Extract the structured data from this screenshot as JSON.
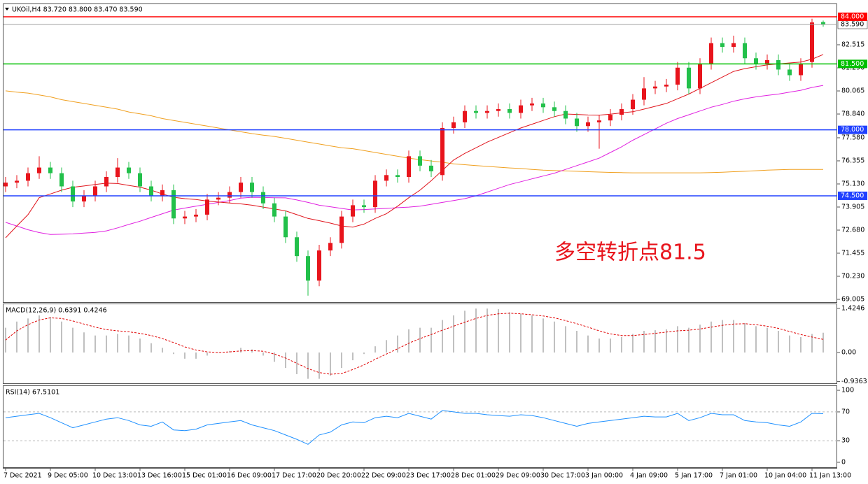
{
  "chart_data": [
    {
      "type": "candlestick",
      "title": "UKOil,H4  83.720 83.800 83.470 83.590",
      "categories": [
        "7 Dec 2021",
        null,
        null,
        null,
        "9 Dec 05:00",
        null,
        null,
        null,
        "10 Dec 13:00",
        null,
        null,
        null,
        "13 Dec 16:00",
        null,
        null,
        null,
        "15 Dec 01:00",
        null,
        null,
        null,
        "16 Dec 09:00",
        null,
        null,
        null,
        "17 Dec 17:00",
        null,
        null,
        null,
        "20 Dec 20:00",
        null,
        null,
        null,
        "22 Dec 09:00",
        null,
        null,
        null,
        "23 Dec 17:00",
        null,
        null,
        null,
        "28 Dec 01:00",
        null,
        null,
        null,
        "29 Dec 09:00",
        null,
        null,
        null,
        "30 Dec 17:00",
        null,
        null,
        null,
        "3 Jan 00:00",
        null,
        null,
        null,
        "4 Jan 09:00",
        null,
        null,
        null,
        "5 Jan 17:00",
        null,
        null,
        null,
        "7 Jan 01:00",
        null,
        null,
        null,
        "10 Jan 04:00",
        null,
        null,
        null,
        "11 Jan 13:00",
        null
      ],
      "open": [
        75.0,
        75.2,
        75.3,
        75.7,
        76.0,
        75.7,
        75.0,
        74.2,
        74.5,
        75.0,
        75.5,
        76.0,
        75.7,
        75.0,
        74.5,
        74.8,
        73.3,
        73.4,
        73.5,
        74.3,
        74.4,
        74.7,
        75.2,
        74.7,
        74.1,
        73.4,
        72.3,
        71.3,
        70.0,
        71.6,
        72.0,
        73.4,
        74.0,
        73.9,
        75.3,
        75.6,
        75.5,
        76.6,
        76.1,
        75.6,
        78.1,
        78.4,
        79.0,
        78.9,
        79.0,
        79.1,
        78.9,
        79.3,
        79.4,
        79.2,
        79.0,
        78.6,
        78.2,
        78.4,
        78.5,
        78.8,
        79.1,
        79.6,
        80.2,
        80.3,
        80.4,
        81.3,
        80.2,
        81.5,
        82.6,
        82.4,
        82.6,
        81.8,
        81.5,
        81.7,
        81.2,
        80.9,
        81.6,
        83.72
      ],
      "high": [
        75.5,
        75.6,
        76.0,
        76.6,
        76.3,
        76.0,
        75.3,
        74.8,
        75.3,
        75.8,
        76.5,
        76.3,
        76.0,
        75.3,
        75.1,
        75.1,
        73.7,
        73.8,
        74.6,
        74.7,
        75.0,
        75.5,
        75.5,
        75.0,
        74.4,
        73.7,
        72.6,
        71.6,
        71.9,
        72.3,
        73.7,
        74.3,
        74.3,
        75.6,
        75.9,
        75.9,
        76.9,
        76.9,
        76.4,
        78.4,
        78.7,
        79.3,
        79.3,
        79.3,
        79.4,
        79.4,
        79.6,
        79.7,
        79.7,
        79.5,
        79.3,
        78.9,
        78.7,
        78.8,
        79.1,
        79.4,
        79.9,
        80.8,
        80.6,
        80.7,
        81.6,
        81.6,
        81.8,
        82.9,
        82.9,
        83.0,
        82.9,
        82.1,
        82.0,
        82.0,
        81.5,
        81.8,
        83.9,
        83.8
      ],
      "low": [
        74.7,
        74.9,
        75.0,
        75.4,
        75.4,
        74.7,
        73.9,
        73.9,
        74.2,
        74.7,
        75.2,
        75.4,
        74.7,
        74.2,
        74.2,
        73.0,
        73.0,
        73.1,
        73.2,
        74.0,
        74.1,
        74.4,
        74.4,
        73.8,
        73.1,
        72.0,
        71.0,
        69.2,
        69.7,
        71.3,
        71.7,
        73.1,
        73.6,
        73.6,
        75.0,
        75.2,
        75.2,
        75.8,
        75.5,
        75.3,
        77.8,
        78.1,
        78.6,
        78.6,
        78.7,
        78.6,
        78.6,
        79.0,
        78.9,
        78.7,
        78.3,
        77.9,
        77.9,
        77.0,
        78.2,
        78.5,
        78.8,
        79.3,
        79.9,
        80.0,
        80.1,
        79.9,
        79.9,
        81.2,
        82.1,
        82.1,
        81.5,
        81.2,
        81.2,
        80.9,
        80.6,
        80.6,
        81.3,
        83.47
      ],
      "close": [
        75.2,
        75.3,
        75.7,
        76.0,
        75.7,
        75.0,
        74.2,
        74.5,
        75.0,
        75.5,
        76.0,
        75.7,
        75.0,
        74.5,
        74.8,
        73.3,
        73.4,
        73.5,
        74.3,
        74.4,
        74.7,
        75.2,
        74.7,
        74.1,
        73.4,
        72.3,
        71.3,
        70.0,
        71.6,
        72.0,
        73.4,
        74.0,
        73.9,
        75.3,
        75.6,
        75.5,
        76.6,
        76.1,
        75.8,
        78.1,
        78.4,
        79.0,
        78.9,
        79.0,
        79.1,
        78.9,
        79.3,
        79.4,
        79.2,
        79.0,
        78.6,
        78.2,
        78.4,
        78.5,
        78.8,
        79.1,
        79.6,
        80.2,
        80.3,
        80.4,
        81.3,
        80.2,
        81.5,
        82.6,
        82.4,
        82.6,
        81.8,
        81.5,
        81.7,
        81.2,
        80.9,
        81.5,
        83.7,
        83.59
      ],
      "up_color": "#e8141c",
      "down_color": "#22c04a",
      "series": [
        {
          "color": "#f0a020",
          "values": [
            80.07,
            80.0,
            79.95,
            79.85,
            79.75,
            79.6,
            79.5,
            79.4,
            79.3,
            79.2,
            79.1,
            78.95,
            78.85,
            78.75,
            78.6,
            78.5,
            78.4,
            78.3,
            78.2,
            78.1,
            78.0,
            77.9,
            77.8,
            77.72,
            77.65,
            77.55,
            77.45,
            77.35,
            77.25,
            77.15,
            77.05,
            77.0,
            76.9,
            76.8,
            76.7,
            76.6,
            76.5,
            76.42,
            76.35,
            76.28,
            76.2,
            76.15,
            76.1,
            76.06,
            76.02,
            75.98,
            75.95,
            75.9,
            75.86,
            75.84,
            75.82,
            75.8,
            75.78,
            75.76,
            75.74,
            75.73,
            75.72,
            75.72,
            75.72,
            75.72,
            75.72,
            75.72,
            75.72,
            75.73,
            75.75,
            75.78,
            75.8,
            75.83,
            75.86,
            75.88,
            75.9,
            75.9,
            75.9,
            75.9
          ]
        },
        {
          "color": "#e020e0",
          "values": [
            73.09,
            72.9,
            72.7,
            72.55,
            72.45,
            72.46,
            72.48,
            72.52,
            72.56,
            72.64,
            72.8,
            72.98,
            73.15,
            73.35,
            73.55,
            73.74,
            73.85,
            73.95,
            74.05,
            74.15,
            74.25,
            74.38,
            74.42,
            74.41,
            74.4,
            74.39,
            74.28,
            74.15,
            74.0,
            73.92,
            73.83,
            73.75,
            73.77,
            73.8,
            73.83,
            73.87,
            73.9,
            73.95,
            74.05,
            74.15,
            74.25,
            74.35,
            74.5,
            74.7,
            74.9,
            75.1,
            75.25,
            75.4,
            75.55,
            75.7,
            75.9,
            76.1,
            76.3,
            76.5,
            76.8,
            77.1,
            77.45,
            77.75,
            78.05,
            78.35,
            78.6,
            78.8,
            79.0,
            79.2,
            79.35,
            79.52,
            79.65,
            79.75,
            79.83,
            79.9,
            80.0,
            80.1,
            80.25,
            80.36
          ]
        },
        {
          "color": "#e0141c",
          "values": [
            72.27,
            72.9,
            73.5,
            74.4,
            74.6,
            74.8,
            74.95,
            75.02,
            75.1,
            75.17,
            75.15,
            75.05,
            74.96,
            74.8,
            74.6,
            74.42,
            74.35,
            74.3,
            74.22,
            74.17,
            74.12,
            74.07,
            74.0,
            73.9,
            73.8,
            73.7,
            73.5,
            73.3,
            73.18,
            73.05,
            72.9,
            72.84,
            73.0,
            73.3,
            73.55,
            73.95,
            74.4,
            74.8,
            75.3,
            75.85,
            76.4,
            76.75,
            77.05,
            77.35,
            77.6,
            77.85,
            78.1,
            78.3,
            78.5,
            78.7,
            78.84,
            78.82,
            78.79,
            78.78,
            78.83,
            78.9,
            78.96,
            79.1,
            79.25,
            79.4,
            79.65,
            79.9,
            80.2,
            80.5,
            80.8,
            81.1,
            81.25,
            81.35,
            81.45,
            81.5,
            81.55,
            81.6,
            81.75,
            82.0
          ]
        }
      ],
      "ylim": [
        68.857,
        84.668
      ],
      "yticks": [
        82.515,
        {
          "value": 81.29,
          "label": "81.290"
        },
        80.065,
        {
          "value": 78.84,
          "label": "78.840"
        },
        {
          "value": 77.58,
          "label": "77.580"
        },
        76.355,
        {
          "value": 75.13,
          "label": "75.130"
        },
        73.905,
        {
          "value": 72.68,
          "label": "72.680"
        },
        71.455,
        {
          "value": 70.23,
          "label": "70.230"
        },
        69.005
      ],
      "price_line": {
        "value": 83.59,
        "label": "83.590",
        "color": "#a0a0a0"
      },
      "levels": [
        {
          "value": 84,
          "label": "84.000",
          "color": "#ff0000"
        },
        {
          "value": 81.5,
          "label": "81.500",
          "color": "#00c000"
        },
        {
          "value": 78,
          "label": "78.000",
          "color": "#2040ff"
        },
        {
          "value": 74.5,
          "label": "74.500",
          "color": "#2040ff"
        }
      ],
      "annotation": "多空转折点81.5"
    },
    {
      "type": "macd",
      "title": "MACD(12,26,9) 0.6391 0.4246",
      "series": [
        {
          "kind": "bar",
          "color": "#c0c0c0",
          "values": [
            0.8,
            1.0,
            1.1,
            1.2,
            1.15,
            1.0,
            0.8,
            0.65,
            0.55,
            0.55,
            0.6,
            0.55,
            0.45,
            0.3,
            0.15,
            -0.05,
            -0.2,
            -0.2,
            -0.1,
            0.0,
            0.05,
            0.15,
            0.1,
            -0.1,
            -0.3,
            -0.5,
            -0.7,
            -0.85,
            -0.85,
            -0.75,
            -0.5,
            -0.25,
            -0.05,
            0.2,
            0.4,
            0.55,
            0.75,
            0.8,
            0.8,
            1.05,
            1.2,
            1.35,
            1.42,
            1.42,
            1.4,
            1.3,
            1.25,
            1.2,
            1.1,
            1.0,
            0.85,
            0.7,
            0.55,
            0.45,
            0.45,
            0.5,
            0.6,
            0.7,
            0.72,
            0.75,
            0.85,
            0.8,
            0.9,
            1.0,
            1.05,
            1.05,
            0.95,
            0.85,
            0.8,
            0.7,
            0.55,
            0.5,
            0.6,
            0.6391
          ]
        },
        {
          "kind": "line",
          "dashed": true,
          "color": "#e00000",
          "values": [
            0.4,
            0.7,
            0.9,
            1.05,
            1.12,
            1.1,
            1.02,
            0.92,
            0.82,
            0.74,
            0.7,
            0.67,
            0.62,
            0.55,
            0.45,
            0.32,
            0.18,
            0.08,
            0.02,
            0.0,
            0.02,
            0.05,
            0.06,
            0.04,
            -0.05,
            -0.18,
            -0.35,
            -0.52,
            -0.65,
            -0.7,
            -0.68,
            -0.55,
            -0.4,
            -0.22,
            -0.05,
            0.12,
            0.3,
            0.45,
            0.58,
            0.72,
            0.85,
            0.98,
            1.1,
            1.2,
            1.25,
            1.27,
            1.25,
            1.22,
            1.18,
            1.12,
            1.03,
            0.93,
            0.82,
            0.7,
            0.6,
            0.55,
            0.55,
            0.58,
            0.62,
            0.66,
            0.7,
            0.72,
            0.76,
            0.82,
            0.88,
            0.92,
            0.93,
            0.9,
            0.85,
            0.78,
            0.68,
            0.58,
            0.5,
            0.4246
          ]
        }
      ],
      "ylim": [
        -0.995,
        1.537
      ],
      "yticks": [
        1.4246,
        {
          "value": 0,
          "label": "0.00"
        },
        -0.9363
      ]
    },
    {
      "type": "line",
      "title": "RSI(14) 67.5101",
      "series": [
        {
          "color": "#1e90ff",
          "values": [
            62,
            64,
            66,
            68,
            62,
            55,
            48,
            52,
            56,
            60,
            62,
            58,
            52,
            50,
            56,
            45,
            44,
            46,
            52,
            54,
            56,
            58,
            52,
            48,
            44,
            38,
            32,
            25,
            38,
            42,
            52,
            56,
            55,
            62,
            64,
            62,
            68,
            64,
            60,
            72,
            70,
            68,
            68,
            66,
            65,
            64,
            66,
            65,
            62,
            58,
            54,
            50,
            54,
            56,
            58,
            60,
            62,
            64,
            63,
            63,
            68,
            58,
            62,
            68,
            66,
            66,
            58,
            56,
            55,
            52,
            50,
            56,
            68,
            67.5101
          ]
        }
      ],
      "ylim": [
        -6.8,
        104.9
      ],
      "yticks": [
        100,
        70,
        30,
        0
      ],
      "levels": [
        70,
        30
      ]
    }
  ]
}
